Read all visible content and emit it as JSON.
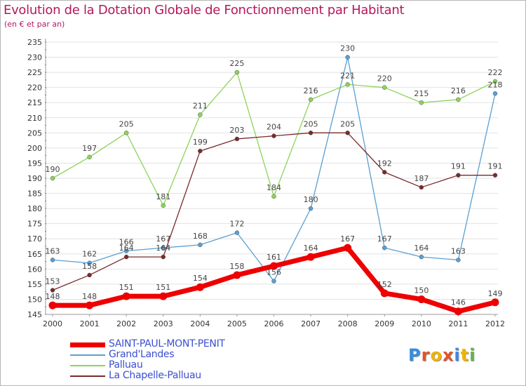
{
  "title": "Evolution de la Dotation Globale de Fonctionnement par Habitant",
  "subtitle": "(en € et par an)",
  "logo": {
    "text": "Proxiti",
    "colors": [
      "#3a8be0",
      "#e0552a",
      "#f0b400",
      "#e0552a",
      "#3a8be0",
      "#f0b400",
      "#6ab04c"
    ]
  },
  "chart_data": {
    "type": "line",
    "title": "Evolution de la Dotation Globale de Fonctionnement par Habitant",
    "ylabel": "(en € et par an)",
    "xlabel": "",
    "categories": [
      "2000",
      "2001",
      "2002",
      "2003",
      "2004",
      "2005",
      "2006",
      "2007",
      "2008",
      "2009",
      "2010",
      "2011",
      "2012"
    ],
    "ylim": [
      145,
      235
    ],
    "yticks": [
      145,
      150,
      155,
      160,
      165,
      170,
      175,
      180,
      185,
      190,
      195,
      200,
      205,
      210,
      215,
      220,
      225,
      230,
      235
    ],
    "grid": "horizontal",
    "series": [
      {
        "name": "Palluau",
        "color": "#8fd35a",
        "values": [
          190,
          197,
          205,
          181,
          211,
          225,
          184,
          216,
          221,
          220,
          215,
          216,
          222
        ]
      },
      {
        "name": "Grand'Landes",
        "color": "#5a9fd1",
        "values": [
          163,
          162,
          166,
          167,
          168,
          172,
          156,
          180,
          230,
          167,
          164,
          163,
          218
        ]
      },
      {
        "name": "La Chapelle-Palluau",
        "color": "#7a2a2a",
        "values": [
          153,
          158,
          164,
          164,
          199,
          203,
          204,
          205,
          205,
          192,
          187,
          191,
          191
        ]
      },
      {
        "name": "SAINT-PAUL-MONT-PENIT",
        "color": "#ee0000",
        "values": [
          148,
          148,
          151,
          151,
          154,
          158,
          161,
          164,
          167,
          152,
          150,
          146,
          149
        ]
      }
    ],
    "legend": [
      "SAINT-PAUL-MONT-PENIT",
      "Grand'Landes",
      "Palluau",
      "La Chapelle-Palluau"
    ]
  }
}
